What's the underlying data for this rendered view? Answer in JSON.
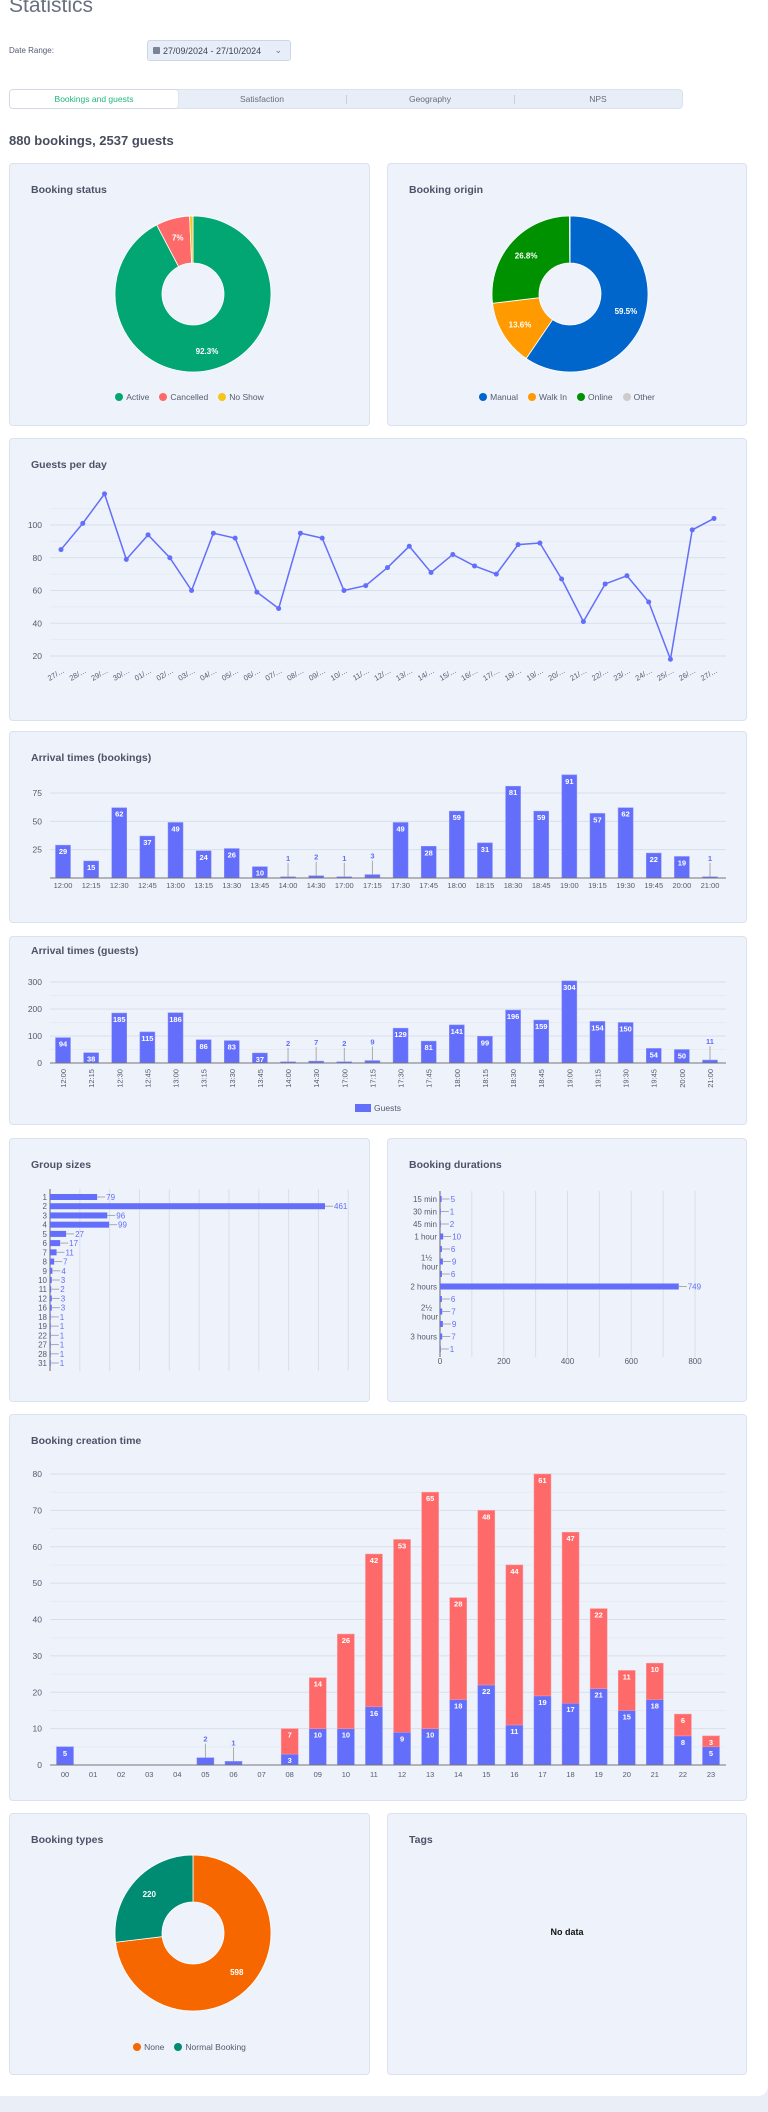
{
  "header": {
    "title": "Statistics",
    "date_range_label": "Date Range:",
    "date_range_value": "27/09/2024 - 27/10/2024"
  },
  "tabs": [
    {
      "label": "Bookings and guests",
      "active": true
    },
    {
      "label": "Satisfaction",
      "active": false
    },
    {
      "label": "Geography",
      "active": false
    },
    {
      "label": "NPS",
      "active": false
    }
  ],
  "summary": "880 bookings, 2537 guests",
  "colors": {
    "accent": "#1fb57f",
    "bar": "#636efa",
    "bar_secondary": "#fe6a6a",
    "card_bg": "#edf2fb"
  },
  "tags": {
    "title": "Tags",
    "empty": "No data"
  },
  "chart_data": [
    {
      "type": "pie",
      "title": "Booking status",
      "hole": true,
      "labels": [
        "Active",
        "Cancelled",
        "No Show"
      ],
      "values": [
        92.3,
        7,
        0.7
      ],
      "value_labels": [
        "92.3%",
        "7%",
        ""
      ],
      "colors": [
        "#02a673",
        "#fe6a6a",
        "#f5c518"
      ],
      "legend": "bottom"
    },
    {
      "type": "pie",
      "title": "Booking origin",
      "hole": true,
      "labels": [
        "Manual",
        "Walk In",
        "Online",
        "Other"
      ],
      "values": [
        59.5,
        13.6,
        26.8,
        0.1
      ],
      "value_labels": [
        "59.5%",
        "13.6%",
        "26.8%",
        ""
      ],
      "colors": [
        "#0066cc",
        "#ff9a00",
        "#009100",
        "#cccccc"
      ],
      "legend": "bottom"
    },
    {
      "type": "line",
      "title": "Guests per day",
      "x": [
        "27/…",
        "28/…",
        "29/…",
        "30/…",
        "01/…",
        "02/…",
        "03/…",
        "04/…",
        "05/…",
        "06/…",
        "07/…",
        "08/…",
        "09/…",
        "10/…",
        "11/…",
        "12/…",
        "13/…",
        "14/…",
        "15/…",
        "16/…",
        "17/…",
        "18/…",
        "19/…",
        "20/…",
        "21/…",
        "22/…",
        "23/…",
        "24/…",
        "25/…",
        "26/…",
        "27/…"
      ],
      "values": [
        85,
        101,
        119,
        79,
        94,
        80,
        60,
        95,
        92,
        59,
        49,
        95,
        92,
        60,
        63,
        74,
        87,
        71,
        82,
        75,
        70,
        88,
        89,
        67,
        41,
        64,
        69,
        53,
        18,
        97,
        104
      ],
      "yticks": [
        "20",
        "40",
        "60",
        "80",
        "100"
      ],
      "grid": true
    },
    {
      "type": "bar",
      "title": "Arrival times (bookings)",
      "categories": [
        "12:00",
        "12:15",
        "12:30",
        "12:45",
        "13:00",
        "13:15",
        "13:30",
        "13:45",
        "14:00",
        "14:30",
        "17:00",
        "17:15",
        "17:30",
        "17:45",
        "18:00",
        "18:15",
        "18:30",
        "18:45",
        "19:00",
        "19:15",
        "19:30",
        "19:45",
        "20:00",
        "21:00"
      ],
      "values": [
        29,
        15,
        62,
        37,
        49,
        24,
        26,
        10,
        1,
        2,
        1,
        3,
        49,
        28,
        59,
        31,
        81,
        59,
        91,
        57,
        62,
        22,
        19,
        1
      ],
      "yticks": [
        "25",
        "50",
        "75"
      ],
      "grid": true
    },
    {
      "type": "bar",
      "title": "Arrival times (guests)",
      "categories": [
        "12:00",
        "12:15",
        "12:30",
        "12:45",
        "13:00",
        "13:15",
        "13:30",
        "13:45",
        "14:00",
        "14:30",
        "17:00",
        "17:15",
        "17:30",
        "17:45",
        "18:00",
        "18:15",
        "18:30",
        "18:45",
        "19:00",
        "19:15",
        "19:30",
        "19:45",
        "20:00",
        "21:00"
      ],
      "values": [
        94,
        38,
        185,
        115,
        186,
        86,
        83,
        37,
        2,
        7,
        2,
        9,
        129,
        81,
        141,
        99,
        196,
        159,
        304,
        154,
        150,
        54,
        50,
        11
      ],
      "yticks": [
        "0",
        "100",
        "200",
        "300"
      ],
      "series_name": "Guests",
      "legend": "bottom",
      "grid": true
    },
    {
      "type": "bar",
      "orientation": "horizontal",
      "title": "Group sizes",
      "categories": [
        "1",
        "2",
        "3",
        "4",
        "5",
        "6",
        "7",
        "8",
        "9",
        "10",
        "11",
        "12",
        "16",
        "18",
        "19",
        "22",
        "27",
        "28",
        "31"
      ],
      "values": [
        79,
        461,
        96,
        99,
        27,
        17,
        11,
        7,
        4,
        3,
        2,
        3,
        3,
        1,
        1,
        1,
        1,
        1,
        1
      ],
      "xlim": [
        0,
        500
      ],
      "grid": true
    },
    {
      "type": "bar",
      "orientation": "horizontal",
      "title": "Booking durations",
      "categories": [
        "15 min",
        "30 min",
        "45 min",
        "1 hour",
        "",
        "1½ hour",
        "",
        "2 hours",
        "",
        "2½ hour",
        "",
        "3 hours",
        ""
      ],
      "values": [
        5,
        1,
        2,
        10,
        6,
        9,
        6,
        749,
        6,
        7,
        9,
        7,
        1
      ],
      "xticks": [
        "0",
        "200",
        "400",
        "600",
        "800"
      ],
      "xlim": [
        0,
        800
      ],
      "grid": true
    },
    {
      "type": "bar",
      "stacked": true,
      "title": "Booking creation time",
      "categories": [
        "00",
        "01",
        "02",
        "03",
        "04",
        "05",
        "06",
        "07",
        "08",
        "09",
        "10",
        "11",
        "12",
        "13",
        "14",
        "15",
        "16",
        "17",
        "18",
        "19",
        "20",
        "21",
        "22",
        "23"
      ],
      "series": [
        {
          "values": [
            5,
            0,
            0,
            0,
            0,
            2,
            1,
            0,
            3,
            10,
            10,
            16,
            9,
            10,
            18,
            22,
            11,
            19,
            17,
            21,
            15,
            18,
            8,
            5
          ]
        },
        {
          "values": [
            0,
            0,
            0,
            0,
            0,
            0,
            0,
            0,
            7,
            14,
            26,
            42,
            53,
            65,
            28,
            48,
            44,
            61,
            47,
            22,
            11,
            10,
            6,
            3
          ]
        }
      ],
      "yticks": [
        "0",
        "10",
        "20",
        "30",
        "40",
        "50",
        "60",
        "70",
        "80"
      ],
      "ylim": [
        0,
        80
      ],
      "grid": true
    },
    {
      "type": "pie",
      "title": "Booking types",
      "hole": true,
      "labels": [
        "None",
        "Normal Booking"
      ],
      "values": [
        598,
        220
      ],
      "value_labels": [
        "598",
        "220"
      ],
      "colors": [
        "#f76700",
        "#008c73"
      ],
      "legend": "bottom"
    }
  ]
}
